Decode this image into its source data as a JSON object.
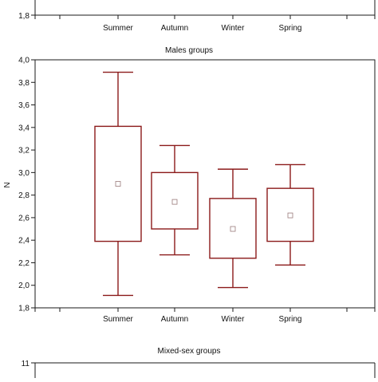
{
  "chart_data": [
    {
      "type": "box",
      "title": "",
      "xlabel": "",
      "ylabel": "",
      "categories": [
        "Summer",
        "Autumn",
        "Winter",
        "Spring"
      ],
      "ylim": [
        1.8,
        null
      ],
      "y_tick_labels_visible": [
        "1,8"
      ],
      "note": "top panel cropped; only bottom axis visible"
    },
    {
      "type": "box",
      "title": "Males groups",
      "xlabel": "",
      "ylabel": "N",
      "categories": [
        "Summer",
        "Autumn",
        "Winter",
        "Spring"
      ],
      "ylim": [
        1.8,
        4.0
      ],
      "yticks": [
        1.8,
        2.0,
        2.2,
        2.4,
        2.6,
        2.8,
        3.0,
        3.2,
        3.4,
        3.6,
        3.8,
        4.0
      ],
      "y_tick_labels": [
        "1,8",
        "2,0",
        "2,2",
        "2,4",
        "2,6",
        "2,8",
        "3,0",
        "3,2",
        "3,4",
        "3,6",
        "3,8",
        "4,0"
      ],
      "grid": false,
      "boxes": [
        {
          "category": "Summer",
          "whisker_low": 1.91,
          "q1": 2.39,
          "median": 2.9,
          "q3": 3.41,
          "whisker_high": 3.89
        },
        {
          "category": "Autumn",
          "whisker_low": 2.27,
          "q1": 2.5,
          "median": 2.74,
          "q3": 3.0,
          "whisker_high": 3.24
        },
        {
          "category": "Winter",
          "whisker_low": 1.98,
          "q1": 2.24,
          "median": 2.5,
          "q3": 2.77,
          "whisker_high": 3.03
        },
        {
          "category": "Spring",
          "whisker_low": 2.18,
          "q1": 2.39,
          "median": 2.62,
          "q3": 2.86,
          "whisker_high": 3.07
        }
      ]
    },
    {
      "type": "box",
      "title": "Mixed-sex groups",
      "xlabel": "",
      "ylabel": "",
      "y_tick_labels_visible": [
        "11"
      ],
      "note": "bottom panel cropped; only title and top tick visible"
    }
  ],
  "colors": {
    "box_stroke": "#8b1a1a",
    "axis": "#1a1a1a",
    "text": "#111111",
    "background": "#ffffff"
  }
}
